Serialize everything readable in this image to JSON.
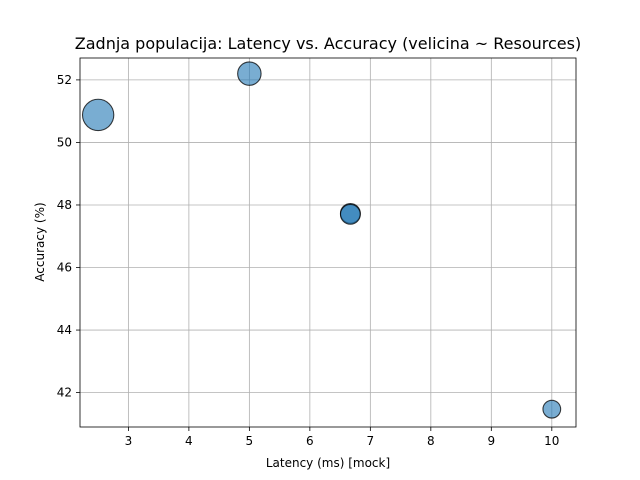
{
  "chart_data": {
    "type": "scatter",
    "title": "Zadnja populacija: Latency vs. Accuracy (velicina ~ Resources)",
    "xlabel": "Latency (ms) [mock]",
    "ylabel": "Accuracy (%)",
    "xlim": [
      2.2,
      10.4
    ],
    "ylim": [
      40.9,
      52.7
    ],
    "xticks": [
      3,
      4,
      5,
      6,
      7,
      8,
      9,
      10
    ],
    "yticks": [
      42,
      44,
      46,
      48,
      50,
      52
    ],
    "grid": true,
    "point_color": "#1f77b4",
    "point_edge_color": "#000000",
    "point_alpha": 0.6,
    "points": [
      {
        "x": 2.5,
        "y": 50.88,
        "size": 500
      },
      {
        "x": 5.0,
        "y": 52.2,
        "size": 280
      },
      {
        "x": 6.67,
        "y": 47.73,
        "size": 200
      },
      {
        "x": 6.67,
        "y": 47.7,
        "size": 200
      },
      {
        "x": 10.0,
        "y": 41.47,
        "size": 160
      }
    ]
  }
}
